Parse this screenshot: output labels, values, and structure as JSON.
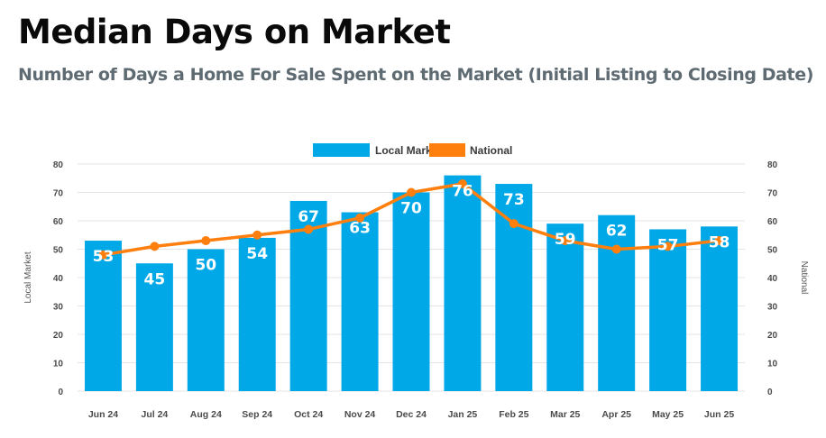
{
  "header": {
    "title": "Median Days on Market",
    "subtitle": "Number of Days a Home For Sale Spent on the Market (Initial Listing to Closing Date)"
  },
  "colors": {
    "bar": "#00a8e8",
    "line": "#ff7f0e",
    "grid": "#e4e4e4"
  },
  "chart_data": {
    "type": "bar",
    "categories": [
      "Jun 24",
      "Jul 24",
      "Aug 24",
      "Sep 24",
      "Oct 24",
      "Nov 24",
      "Dec 24",
      "Jan 25",
      "Feb 25",
      "Mar 25",
      "Apr 25",
      "May 25",
      "Jun 25"
    ],
    "series": [
      {
        "name": "Local Market",
        "type": "bar",
        "values": [
          53,
          45,
          50,
          54,
          67,
          63,
          70,
          76,
          73,
          59,
          62,
          57,
          58
        ]
      },
      {
        "name": "National",
        "type": "line",
        "values": [
          48,
          51,
          53,
          55,
          57,
          61,
          70,
          73,
          59,
          53,
          50,
          51,
          53
        ]
      }
    ],
    "ylabel": "Local Market",
    "y2label": "National",
    "ylim": [
      0,
      80
    ],
    "y2lim": [
      0,
      80
    ],
    "yticks": [
      0,
      10,
      20,
      30,
      40,
      50,
      60,
      70,
      80
    ],
    "legend": "top-center",
    "grid": true
  }
}
